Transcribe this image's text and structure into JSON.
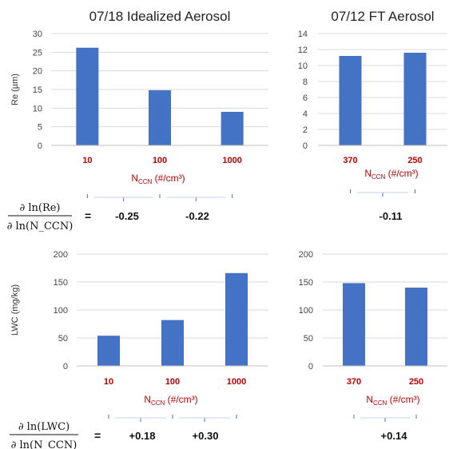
{
  "chart_data": [
    {
      "type": "bar",
      "title": "07/18 Idealized Aerosol",
      "ylabel": "Re (µm)",
      "xlabel": "N_CCN (#/cm³)",
      "categories": [
        "10",
        "100",
        "1000"
      ],
      "values": [
        26.2,
        14.8,
        9.0
      ],
      "ylim": [
        0,
        30
      ],
      "yticks": [
        "0",
        "5",
        "10",
        "15",
        "20",
        "25",
        "30"
      ],
      "bar_color": "#4472C4",
      "category_color": "#C00000",
      "derivatives": [
        "-0.25",
        "-0.22"
      ]
    },
    {
      "type": "bar",
      "title": "07/12 FT Aerosol",
      "ylabel": "",
      "xlabel": "N_CCN (#/cm³)",
      "categories": [
        "370",
        "250"
      ],
      "values": [
        11.2,
        11.6
      ],
      "ylim": [
        0,
        14
      ],
      "yticks": [
        "0",
        "2",
        "4",
        "6",
        "8",
        "10",
        "12",
        "14"
      ],
      "bar_color": "#4472C4",
      "category_color": "#C00000",
      "derivatives": [
        "-0.11"
      ]
    },
    {
      "type": "bar",
      "title": "",
      "ylabel": "LWC (mg/kg)",
      "xlabel": "N_CCN (#/cm³)",
      "categories": [
        "10",
        "100",
        "1000"
      ],
      "values": [
        54,
        82,
        166
      ],
      "ylim": [
        0,
        200
      ],
      "yticks": [
        "0",
        "50",
        "100",
        "150",
        "200"
      ],
      "bar_color": "#4472C4",
      "category_color": "#C00000",
      "derivatives": [
        "+0.18",
        "+0.30"
      ]
    },
    {
      "type": "bar",
      "title": "",
      "ylabel": "",
      "xlabel": "N_CCN (#/cm³)",
      "categories": [
        "370",
        "250"
      ],
      "values": [
        148,
        140
      ],
      "ylim": [
        0,
        200
      ],
      "yticks": [
        "0",
        "50",
        "100",
        "150",
        "200"
      ],
      "bar_color": "#4472C4",
      "category_color": "#C00000",
      "derivatives": [
        "+0.14"
      ]
    }
  ],
  "equations": {
    "re": {
      "numerator": "∂ ln(Re)",
      "denominator": "∂ ln(N_CCN)",
      "equals": "="
    },
    "lwc": {
      "numerator": "∂ ln(LWC)",
      "denominator": "∂ ln(N_CCN)",
      "equals": "="
    }
  }
}
